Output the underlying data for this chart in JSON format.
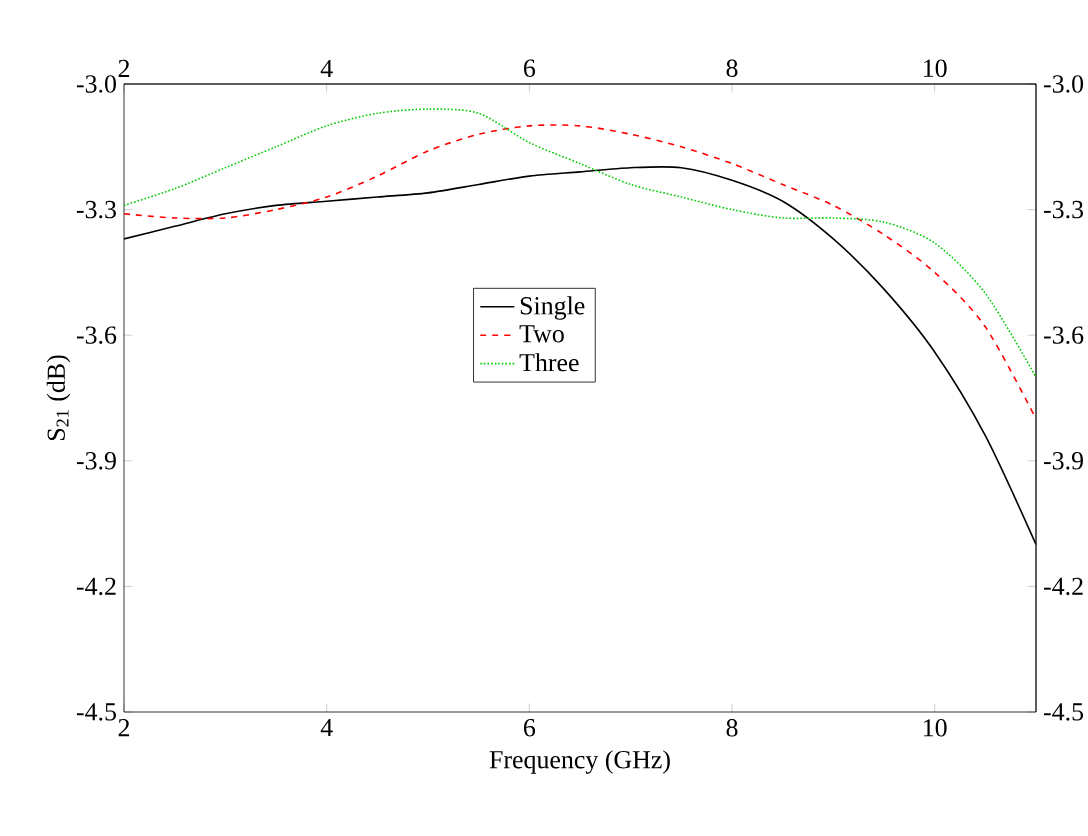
{
  "chart_data": {
    "type": "line",
    "xlabel": "Frequency (GHz)",
    "ylabel": "S$_{21}$ (dB)",
    "xlim": [
      2,
      11
    ],
    "xticks": [
      2,
      4,
      6,
      8,
      10
    ],
    "x2lim": [
      2,
      11
    ],
    "x2ticks": [
      2,
      4,
      6,
      8,
      10
    ],
    "ylim": [
      -4.5,
      -3.0
    ],
    "yticks": [
      {
        "value": -4.5,
        "label": "-4.5"
      },
      {
        "value": -4.2,
        "label": "-4.2"
      },
      {
        "value": -3.9,
        "label": "-3.9"
      },
      {
        "value": -3.6,
        "label": "-3.6"
      },
      {
        "value": -3.3,
        "label": "-3.3"
      },
      {
        "value": -3.0,
        "label": "-3.0"
      }
    ],
    "y2lim": [
      -4.5,
      -3.0
    ],
    "y2ticks": [
      {
        "value": -4.5,
        "label": "-4.5"
      },
      {
        "value": -4.2,
        "label": "-4.2"
      },
      {
        "value": -3.9,
        "label": "-3.9"
      },
      {
        "value": -3.6,
        "label": "-3.6"
      },
      {
        "value": -3.3,
        "label": "-3.3"
      },
      {
        "value": -3.0,
        "label": "-3.0"
      }
    ],
    "x": [
      2,
      2.5,
      3,
      3.5,
      4,
      4.5,
      5,
      5.5,
      6,
      6.5,
      7,
      7.5,
      8,
      8.5,
      9,
      9.5,
      10,
      10.5,
      11
    ],
    "legend": "center",
    "grid": false,
    "marker": "none",
    "series": [
      {
        "name": "Single",
        "color": "#000000",
        "line_style": "solid",
        "values": [
          -3.37,
          -3.34,
          -3.31,
          -3.29,
          -3.28,
          -3.27,
          -3.26,
          -3.24,
          -3.22,
          -3.21,
          -3.2,
          -3.2,
          -3.23,
          -3.28,
          -3.37,
          -3.49,
          -3.64,
          -3.84,
          -4.1
        ]
      },
      {
        "name": "Two",
        "color": "#ff0000",
        "line_style": "dashed",
        "values": [
          -3.31,
          -3.32,
          -3.32,
          -3.3,
          -3.27,
          -3.22,
          -3.16,
          -3.12,
          -3.1,
          -3.1,
          -3.12,
          -3.15,
          -3.19,
          -3.24,
          -3.29,
          -3.36,
          -3.45,
          -3.58,
          -3.8
        ]
      },
      {
        "name": "Three",
        "color": "#00cc00",
        "line_style": "dotted",
        "values": [
          -3.29,
          -3.25,
          -3.2,
          -3.15,
          -3.1,
          -3.07,
          -3.06,
          -3.07,
          -3.14,
          -3.19,
          -3.24,
          -3.27,
          -3.3,
          -3.32,
          -3.32,
          -3.33,
          -3.38,
          -3.5,
          -3.7
        ]
      }
    ]
  }
}
